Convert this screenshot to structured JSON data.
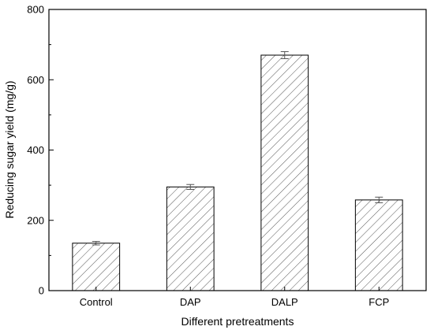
{
  "chart_data": {
    "type": "bar",
    "title": "",
    "xlabel": "Different pretreatments",
    "ylabel": "Reducing sugar yield (mg/g)",
    "categories": [
      "Control",
      "DAP",
      "DALP",
      "FCP"
    ],
    "values": [
      135,
      295,
      670,
      258
    ],
    "errors": [
      5,
      7,
      10,
      8
    ],
    "ylim": [
      0,
      800
    ],
    "yticks": [
      0,
      200,
      400,
      600,
      800
    ],
    "grid": false,
    "legend": "none",
    "bar_fill": "hatched",
    "bar_color": "#ffffff",
    "edge_color": "#555555"
  }
}
